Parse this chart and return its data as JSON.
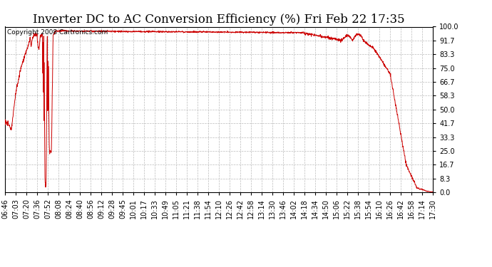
{
  "title": "Inverter DC to AC Conversion Efficiency (%) Fri Feb 22 17:35",
  "copyright": "Copyright 2008 Cartronics.com",
  "line_color": "#cc0000",
  "background_color": "#ffffff",
  "plot_bg_color": "#ffffff",
  "grid_color": "#bbbbbb",
  "grid_style": "--",
  "ylim": [
    0.0,
    100.0
  ],
  "yticks": [
    0.0,
    8.3,
    16.7,
    25.0,
    33.3,
    41.7,
    50.0,
    58.3,
    66.7,
    75.0,
    83.3,
    91.7,
    100.0
  ],
  "xtick_labels": [
    "06:46",
    "07:03",
    "07:20",
    "07:36",
    "07:52",
    "08:08",
    "08:24",
    "08:40",
    "08:56",
    "09:12",
    "09:28",
    "09:45",
    "10:01",
    "10:17",
    "10:33",
    "10:49",
    "11:05",
    "11:21",
    "11:38",
    "11:54",
    "12:10",
    "12:26",
    "12:42",
    "12:58",
    "13:14",
    "13:30",
    "13:46",
    "14:02",
    "14:18",
    "14:34",
    "14:50",
    "15:06",
    "15:22",
    "15:38",
    "15:54",
    "16:10",
    "16:26",
    "16:42",
    "16:58",
    "17:14",
    "17:30"
  ],
  "title_fontsize": 12,
  "copyright_fontsize": 6.5,
  "tick_fontsize": 7,
  "linewidth": 0.7
}
